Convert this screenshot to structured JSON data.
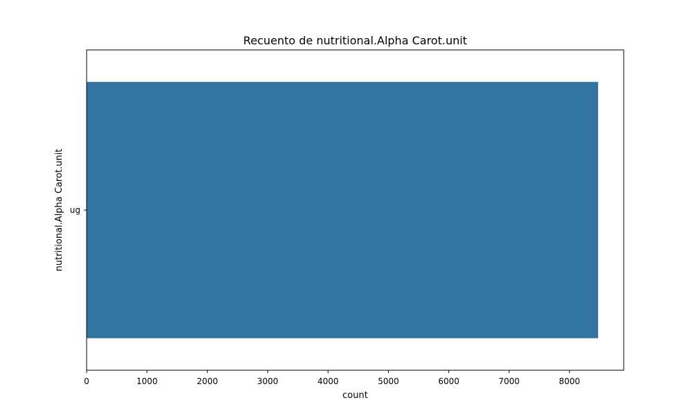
{
  "chart_data": {
    "type": "bar",
    "orientation": "horizontal",
    "title": "Recuento de nutritional.Alpha Carot.unit",
    "xlabel": "count",
    "ylabel": "nutritional.Alpha Carot.unit",
    "categories": [
      "ug"
    ],
    "values": [
      8474
    ],
    "xlim": [
      0,
      8898
    ],
    "xticks": [
      0,
      1000,
      2000,
      3000,
      4000,
      5000,
      6000,
      7000,
      8000
    ],
    "xtick_labels": [
      "0",
      "1000",
      "2000",
      "3000",
      "4000",
      "5000",
      "6000",
      "7000",
      "8000"
    ],
    "grid": false,
    "bar_color": "#3274a1"
  }
}
